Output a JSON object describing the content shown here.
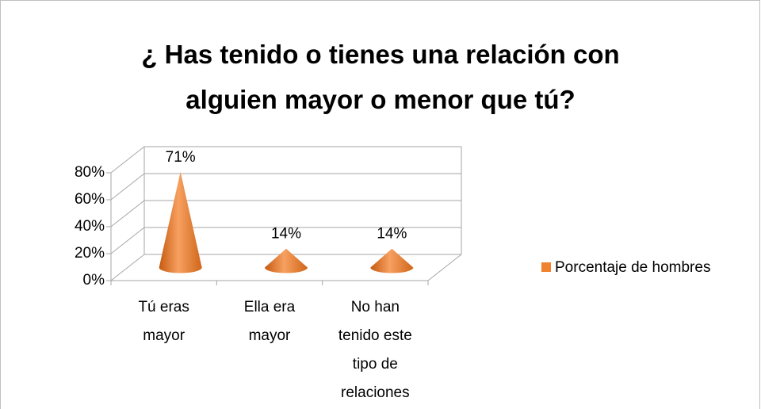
{
  "chart_data": {
    "type": "cone3d",
    "title": "¿ Has tenido o tienes una relación con alguien mayor o menor que tú?",
    "categories": [
      "Tú eras mayor",
      "Ella era mayor",
      "No han tenido este tipo de relaciones"
    ],
    "series": [
      {
        "name": "Porcentaje de hombres",
        "color": "#f0822d",
        "values": [
          71,
          14,
          14
        ],
        "value_labels": [
          "71%",
          "14%",
          "14%"
        ]
      }
    ],
    "ylim": [
      0,
      80
    ],
    "yticks": [
      {
        "value": 0,
        "label": "0%"
      },
      {
        "value": 20,
        "label": "20%"
      },
      {
        "value": 40,
        "label": "40%"
      },
      {
        "value": 60,
        "label": "60%"
      },
      {
        "value": 80,
        "label": "80%"
      }
    ],
    "grid": true,
    "legend": "right"
  }
}
